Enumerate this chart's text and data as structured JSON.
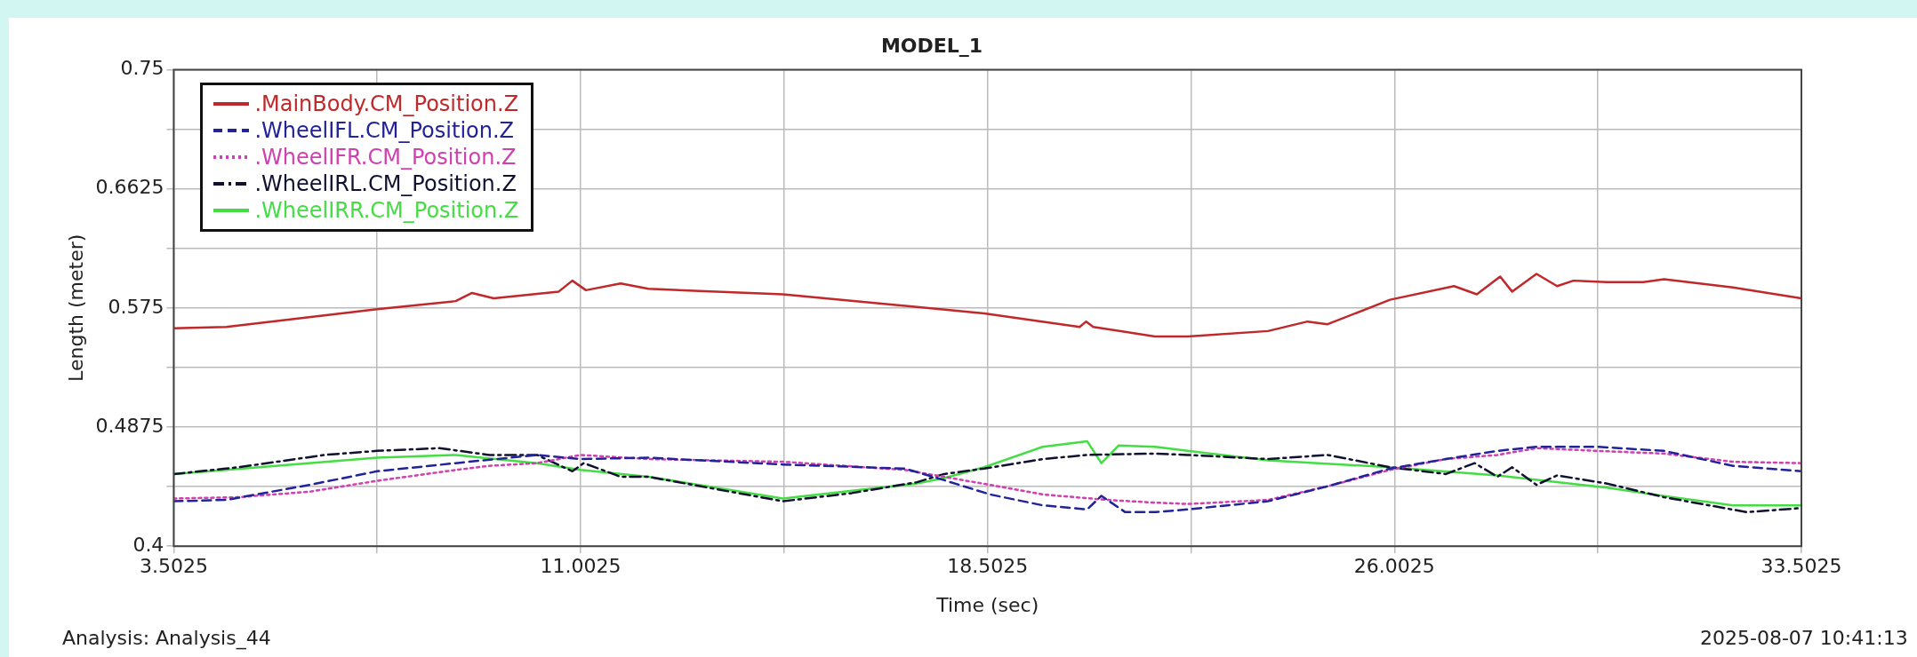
{
  "chart_data": {
    "type": "line",
    "title": "MODEL_1",
    "xlabel": "Time (sec)",
    "ylabel": "Length (meter)",
    "xlim": [
      3.5025,
      33.5025
    ],
    "xticks": [
      3.5025,
      {
        "value": 7.2525,
        "label": null
      },
      11.0025,
      {
        "value": 14.7525,
        "label": null
      },
      18.5025,
      {
        "value": 22.2525,
        "label": null
      },
      26.0025,
      {
        "value": 29.7525,
        "label": null
      },
      33.5025
    ],
    "ylim": [
      0.4,
      0.75
    ],
    "yticks": [
      0.4,
      {
        "value": 0.44375,
        "label": null
      },
      0.4875,
      {
        "value": 0.53125,
        "label": null
      },
      0.575,
      {
        "value": 0.61875,
        "label": null
      },
      0.6625,
      {
        "value": 0.70625,
        "label": null
      },
      0.75
    ],
    "grid": true,
    "legend": "top left",
    "marker": "none",
    "annotations": [
      "Analysis:  Analysis_44",
      "2025-08-07 10:41:13"
    ],
    "series": [
      {
        "name": ".MainBody.CM_Position.Z",
        "color": "#c0282a",
        "line_style": "solid",
        "x": [
          3.5025,
          4.47,
          7.25,
          8.7,
          9.0,
          9.4,
          10.6,
          10.85,
          11.1,
          11.74,
          12.25,
          14.73,
          18.44,
          20.2,
          20.32,
          20.45,
          21.59,
          22.19,
          23.67,
          24.4,
          24.77,
          25.92,
          27.1,
          27.52,
          27.95,
          28.17,
          28.62,
          29.0,
          29.3,
          29.92,
          30.59,
          30.97,
          32.24,
          33.5025
        ],
        "values": [
          0.56,
          0.561,
          0.574,
          0.58,
          0.586,
          0.582,
          0.587,
          0.595,
          0.588,
          0.593,
          0.589,
          0.585,
          0.571,
          0.561,
          0.565,
          0.561,
          0.554,
          0.554,
          0.558,
          0.565,
          0.563,
          0.581,
          0.591,
          0.585,
          0.598,
          0.587,
          0.6,
          0.591,
          0.595,
          0.594,
          0.594,
          0.596,
          0.59,
          0.582
        ]
      },
      {
        "name": ".WheelIFL.CM_Position.Z",
        "color": "#22229a",
        "line_style": "dashed",
        "x": [
          3.5025,
          4.47,
          6.0,
          7.25,
          8.7,
          10.2,
          11.0,
          12.25,
          14.73,
          16.98,
          17.58,
          18.55,
          19.52,
          20.34,
          20.6,
          21.04,
          21.59,
          22.19,
          23.67,
          24.77,
          25.92,
          26.95,
          27.9,
          28.62,
          29.74,
          30.97,
          32.24,
          33.5025
        ],
        "values": [
          0.433,
          0.434,
          0.445,
          0.455,
          0.461,
          0.467,
          0.464,
          0.465,
          0.46,
          0.457,
          0.45,
          0.438,
          0.43,
          0.427,
          0.437,
          0.425,
          0.425,
          0.427,
          0.433,
          0.444,
          0.457,
          0.464,
          0.47,
          0.473,
          0.473,
          0.47,
          0.459,
          0.455
        ]
      },
      {
        "name": ".WheelIFR.CM_Position.Z",
        "color": "#d040b0",
        "line_style": "dotted",
        "x": [
          3.5025,
          4.7,
          6.0,
          7.25,
          8.7,
          9.32,
          10.2,
          11.0,
          12.25,
          14.73,
          16.98,
          18.55,
          19.52,
          20.7,
          21.59,
          22.19,
          23.67,
          24.77,
          25.92,
          26.95,
          27.9,
          28.62,
          29.74,
          30.97,
          32.24,
          33.5025
        ],
        "values": [
          0.435,
          0.436,
          0.44,
          0.448,
          0.456,
          0.459,
          0.461,
          0.467,
          0.464,
          0.462,
          0.456,
          0.445,
          0.438,
          0.434,
          0.432,
          0.431,
          0.434,
          0.444,
          0.456,
          0.464,
          0.467,
          0.472,
          0.47,
          0.468,
          0.462,
          0.461
        ]
      },
      {
        "name": ".WheelIRL.CM_Position.Z",
        "color": "#101030",
        "line_style": "dashdot",
        "x": [
          3.5025,
          4.7,
          6.28,
          7.25,
          8.4,
          9.32,
          10.2,
          10.85,
          11.06,
          11.74,
          12.25,
          14.73,
          16.0,
          17.2,
          17.7,
          18.44,
          19.52,
          20.34,
          21.59,
          22.19,
          23.67,
          24.77,
          25.92,
          26.95,
          27.48,
          27.9,
          28.17,
          28.62,
          29.0,
          29.92,
          30.97,
          32.5,
          33.5025
        ],
        "values": [
          0.453,
          0.458,
          0.467,
          0.47,
          0.472,
          0.467,
          0.467,
          0.455,
          0.461,
          0.451,
          0.451,
          0.433,
          0.439,
          0.447,
          0.453,
          0.457,
          0.464,
          0.467,
          0.468,
          0.467,
          0.464,
          0.467,
          0.458,
          0.453,
          0.461,
          0.451,
          0.458,
          0.445,
          0.452,
          0.446,
          0.436,
          0.425,
          0.428
        ]
      },
      {
        "name": ".WheelIRR.CM_Position.Z",
        "color": "#44dd44",
        "line_style": "solid",
        "x": [
          3.5025,
          4.47,
          7.25,
          8.7,
          10.2,
          11.0,
          12.25,
          14.73,
          17.2,
          17.7,
          18.44,
          19.52,
          20.34,
          20.6,
          20.92,
          21.59,
          22.19,
          23.67,
          25.92,
          27.9,
          29.92,
          30.59,
          32.24,
          33.5025
        ],
        "values": [
          0.453,
          0.456,
          0.465,
          0.467,
          0.461,
          0.456,
          0.451,
          0.435,
          0.446,
          0.45,
          0.458,
          0.473,
          0.477,
          0.461,
          0.474,
          0.473,
          0.47,
          0.463,
          0.458,
          0.452,
          0.443,
          0.439,
          0.43,
          0.43
        ]
      }
    ]
  }
}
